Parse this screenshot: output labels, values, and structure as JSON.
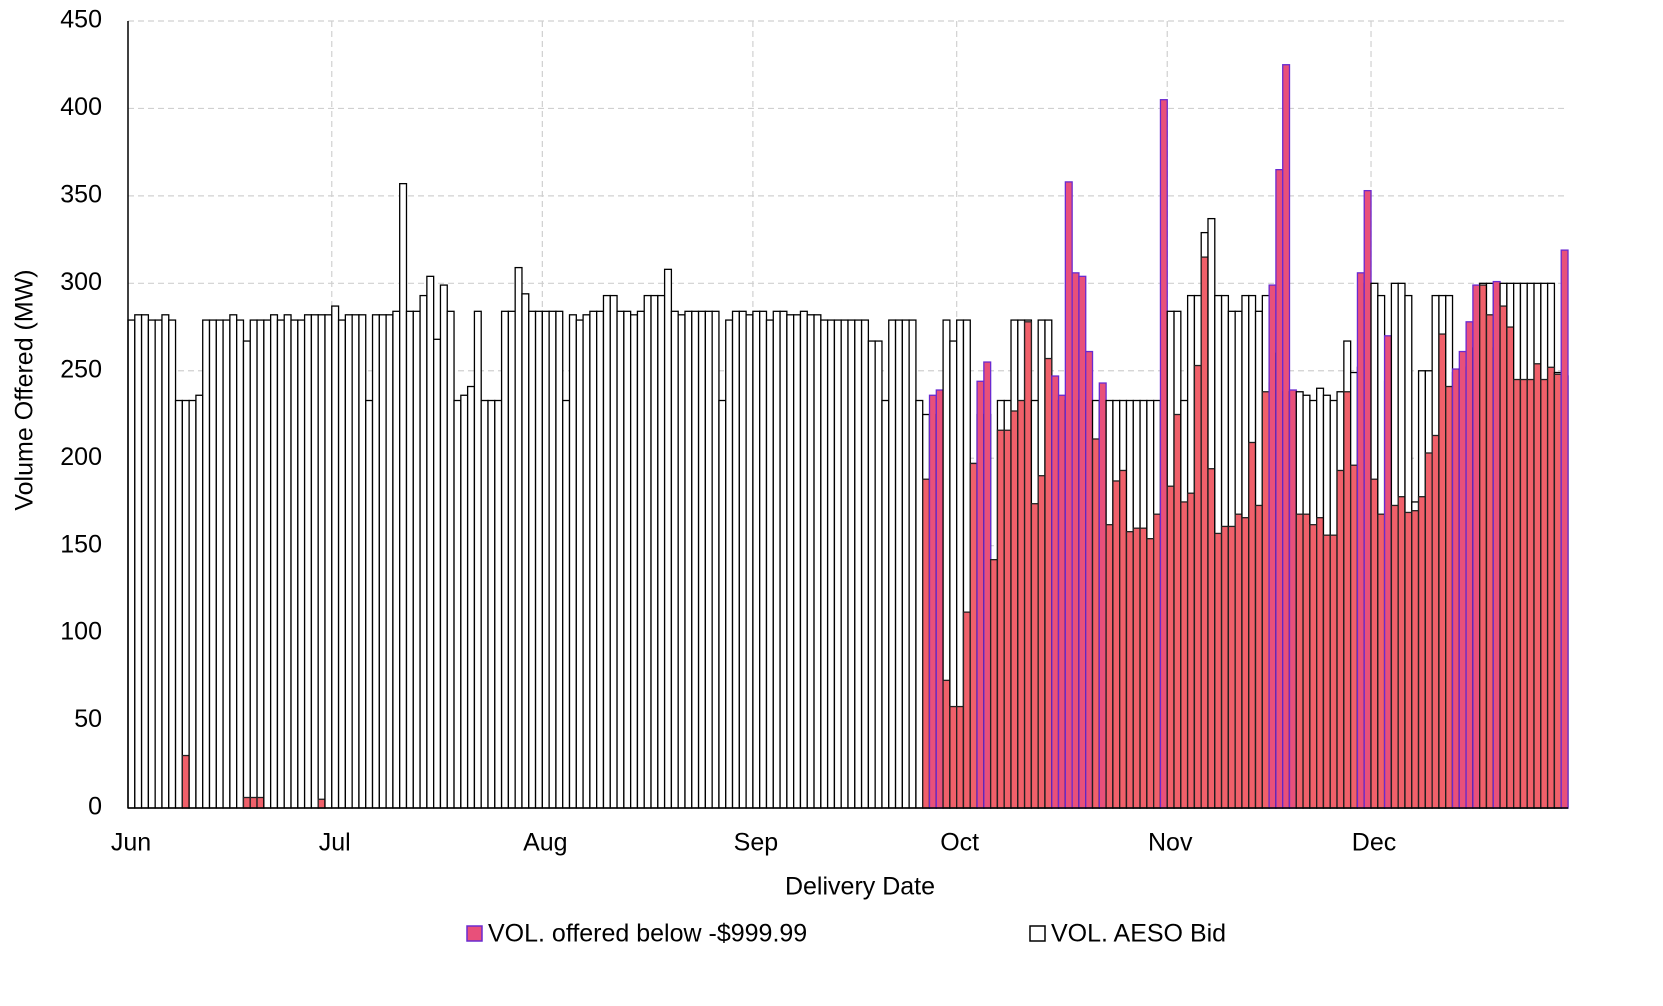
{
  "chart_data": {
    "type": "bar",
    "x_label": "Delivery Date",
    "y_label": "Volume Offered (MW)",
    "categories": [
      "Jun",
      null,
      null,
      null,
      null,
      null,
      null,
      null,
      null,
      null,
      null,
      null,
      null,
      null,
      null,
      null,
      null,
      null,
      null,
      null,
      null,
      null,
      null,
      null,
      null,
      null,
      null,
      null,
      null,
      null,
      "Jul",
      null,
      null,
      null,
      null,
      null,
      null,
      null,
      null,
      null,
      null,
      null,
      null,
      null,
      null,
      null,
      null,
      null,
      null,
      null,
      null,
      null,
      null,
      null,
      null,
      null,
      null,
      null,
      null,
      null,
      null,
      "Aug",
      null,
      null,
      null,
      null,
      null,
      null,
      null,
      null,
      null,
      null,
      null,
      null,
      null,
      null,
      null,
      null,
      null,
      null,
      null,
      null,
      null,
      null,
      null,
      null,
      null,
      null,
      null,
      null,
      null,
      null,
      "Sep",
      null,
      null,
      null,
      null,
      null,
      null,
      null,
      null,
      null,
      null,
      null,
      null,
      null,
      null,
      null,
      null,
      null,
      null,
      null,
      null,
      null,
      null,
      null,
      null,
      null,
      null,
      null,
      null,
      null,
      "Oct",
      null,
      null,
      null,
      null,
      null,
      null,
      null,
      null,
      null,
      null,
      null,
      null,
      null,
      null,
      null,
      null,
      null,
      null,
      null,
      null,
      null,
      null,
      null,
      null,
      null,
      null,
      null,
      null,
      null,
      null,
      "Nov",
      null,
      null,
      null,
      null,
      null,
      null,
      null,
      null,
      null,
      null,
      null,
      null,
      null,
      null,
      null,
      null,
      null,
      null,
      null,
      null,
      null,
      null,
      null,
      null,
      null,
      null,
      null,
      null,
      null,
      "Dec",
      null,
      null,
      null,
      null,
      null,
      null,
      null,
      null,
      null,
      null,
      null,
      null,
      null,
      null,
      null,
      null,
      null,
      null,
      null,
      null,
      null,
      null,
      null,
      null,
      null,
      null,
      null,
      null
    ],
    "series": [
      {
        "name": "VOL. AESO Bid",
        "color": "#ffffff",
        "values": [
          279,
          282,
          282,
          279,
          279,
          282,
          279,
          233,
          233,
          233,
          236,
          279,
          279,
          279,
          279,
          282,
          279,
          267,
          279,
          279,
          279,
          282,
          279,
          282,
          279,
          279,
          282,
          282,
          282,
          282,
          287,
          279,
          282,
          282,
          282,
          233,
          282,
          282,
          282,
          284,
          357,
          284,
          284,
          293,
          304,
          268,
          299,
          284,
          233,
          236,
          241,
          284,
          233,
          233,
          233,
          284,
          284,
          309,
          294,
          284,
          284,
          284,
          284,
          284,
          233,
          282,
          279,
          282,
          284,
          284,
          293,
          293,
          284,
          284,
          282,
          284,
          293,
          293,
          293,
          308,
          284,
          282,
          284,
          284,
          284,
          284,
          284,
          233,
          279,
          284,
          284,
          282,
          284,
          284,
          279,
          284,
          284,
          282,
          282,
          284,
          282,
          282,
          279,
          279,
          279,
          279,
          279,
          279,
          279,
          267,
          267,
          233,
          279,
          279,
          279,
          279,
          233,
          225,
          225,
          225,
          279,
          267,
          279,
          279,
          197,
          225,
          225,
          142,
          233,
          233,
          279,
          279,
          279,
          233,
          279,
          279,
          233,
          233,
          233,
          233,
          233,
          233,
          233,
          233,
          233,
          233,
          233,
          233,
          233,
          233,
          233,
          233,
          233,
          284,
          284,
          233,
          293,
          293,
          329,
          337,
          293,
          293,
          284,
          284,
          293,
          293,
          284,
          293,
          243,
          260,
          238,
          238,
          238,
          236,
          233,
          240,
          236,
          233,
          238,
          267,
          249,
          252,
          300,
          300,
          293,
          244,
          300,
          300,
          293,
          175,
          250,
          250,
          293,
          293,
          293,
          249,
          251,
          252,
          263,
          300,
          300,
          263,
          300,
          300,
          300,
          300,
          300,
          300,
          300,
          300,
          249,
          247
        ]
      },
      {
        "name": "VOL. offered below -$999.99",
        "color": "#f0606a",
        "values": [
          0,
          0,
          0,
          0,
          0,
          0,
          0,
          0,
          30,
          0,
          0,
          0,
          0,
          0,
          0,
          0,
          0,
          6,
          6,
          6,
          0,
          0,
          0,
          0,
          0,
          0,
          0,
          0,
          5,
          0,
          0,
          0,
          0,
          0,
          0,
          0,
          0,
          0,
          0,
          0,
          0,
          0,
          0,
          0,
          0,
          0,
          0,
          0,
          0,
          0,
          0,
          0,
          0,
          0,
          0,
          0,
          0,
          0,
          0,
          0,
          0,
          0,
          0,
          0,
          0,
          0,
          0,
          0,
          0,
          0,
          0,
          0,
          0,
          0,
          0,
          0,
          0,
          0,
          0,
          0,
          0,
          0,
          0,
          0,
          0,
          0,
          0,
          0,
          0,
          0,
          0,
          0,
          0,
          0,
          0,
          0,
          0,
          0,
          0,
          0,
          0,
          0,
          0,
          0,
          0,
          0,
          0,
          0,
          0,
          0,
          0,
          0,
          0,
          0,
          0,
          0,
          0,
          188,
          236,
          239,
          73,
          58,
          58,
          112,
          197,
          244,
          255,
          142,
          216,
          216,
          227,
          233,
          278,
          174,
          190,
          257,
          247,
          236,
          358,
          306,
          304,
          261,
          211,
          243,
          162,
          187,
          193,
          158,
          160,
          160,
          154,
          168,
          405,
          184,
          225,
          175,
          180,
          253,
          315,
          194,
          157,
          161,
          161,
          168,
          166,
          209,
          173,
          238,
          299,
          365,
          425,
          239,
          168,
          168,
          162,
          166,
          156,
          156,
          193,
          238,
          196,
          306,
          353,
          188,
          168,
          270,
          173,
          178,
          169,
          170,
          178,
          203,
          213,
          271,
          241,
          251,
          261,
          278,
          299,
          299,
          282,
          301,
          287,
          275,
          245,
          245,
          245,
          254,
          245,
          252,
          248,
          319
        ]
      }
    ],
    "ylim": [
      0,
      450
    ],
    "yticks": [
      0,
      50,
      100,
      150,
      200,
      250,
      300,
      350,
      400,
      450
    ],
    "grid": true
  }
}
